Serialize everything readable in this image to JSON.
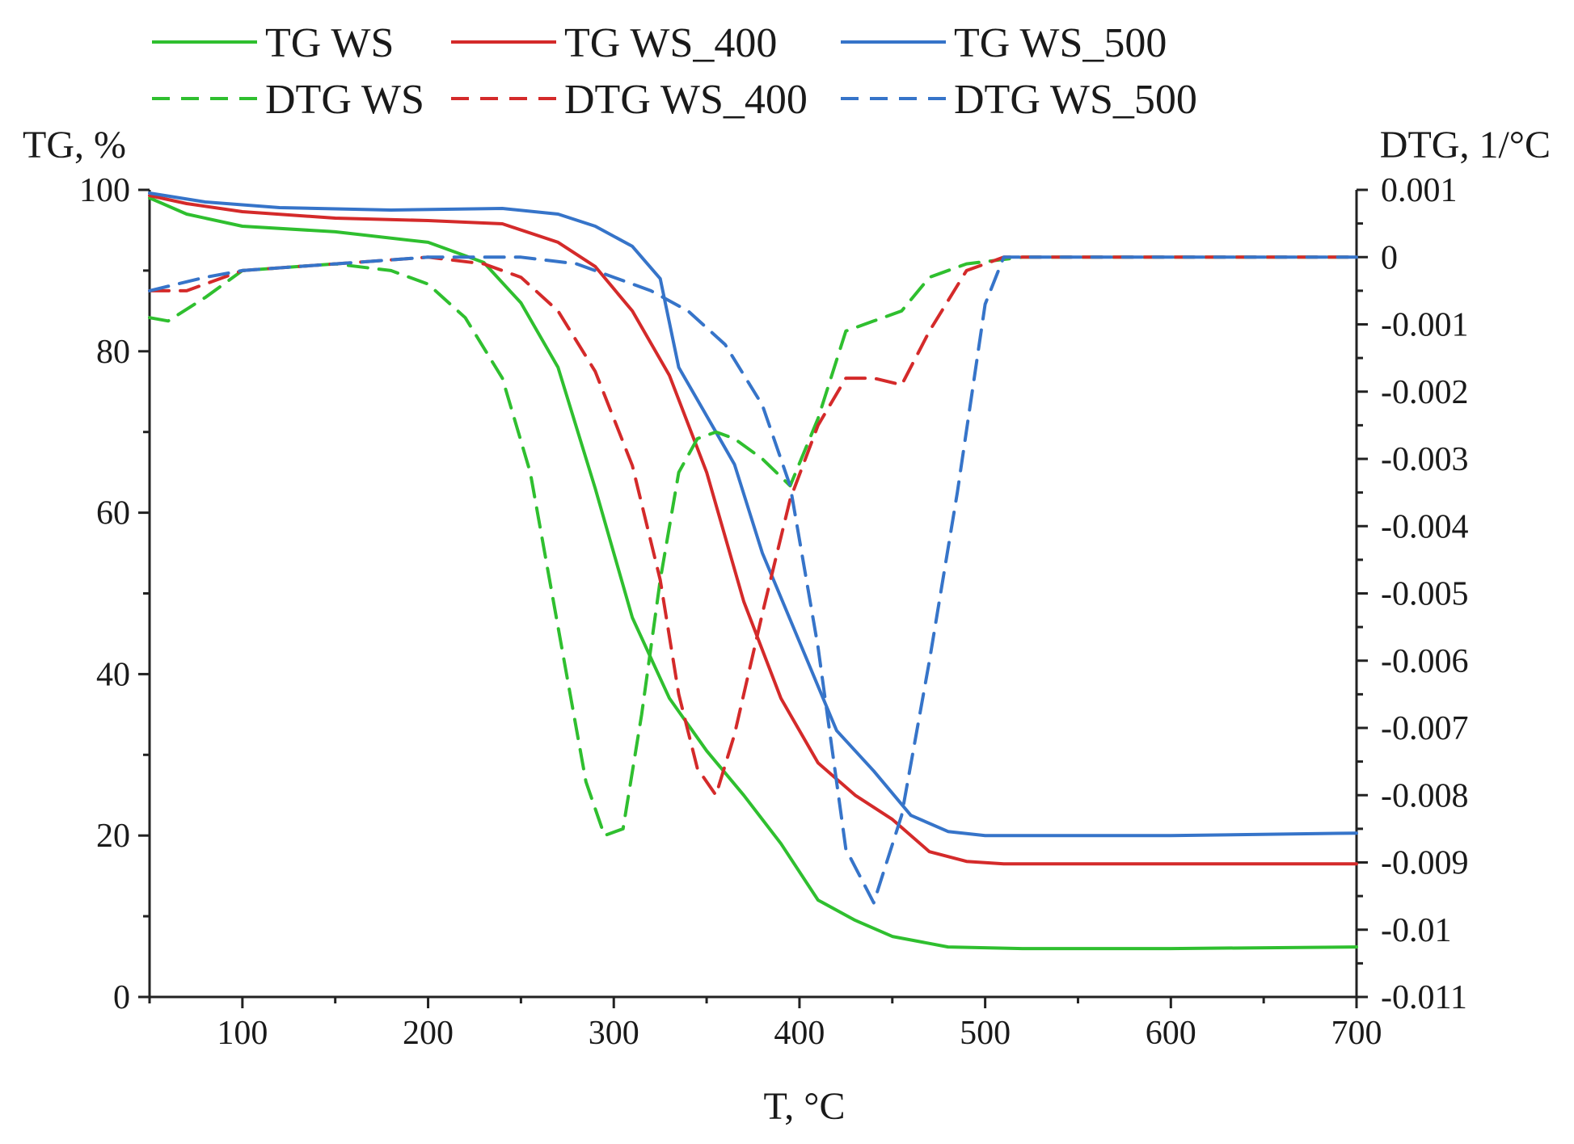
{
  "chart_data": {
    "type": "line",
    "title": "",
    "xlabel": "T, °C",
    "ylabel_left": "TG, %",
    "ylabel_right": "DTG, 1/°C",
    "xlim": [
      50,
      700
    ],
    "ylim_left": [
      0,
      100
    ],
    "ylim_right": [
      -0.011,
      0.001
    ],
    "x_ticks": [
      100,
      200,
      300,
      400,
      500,
      600,
      700
    ],
    "x_tick_labels": [
      "100",
      "200",
      "300",
      "400",
      "500",
      "600",
      "700"
    ],
    "y_left_ticks": [
      0,
      20,
      40,
      60,
      80,
      100
    ],
    "y_left_tick_labels": [
      "0",
      "20",
      "40",
      "60",
      "80",
      "100"
    ],
    "y_right_ticks": [
      0.001,
      0,
      -0.001,
      -0.002,
      -0.003,
      -0.004,
      -0.005,
      -0.006,
      -0.007,
      -0.008,
      -0.009,
      -0.01,
      -0.011
    ],
    "y_right_tick_labels": [
      "0.001",
      "0",
      "-0.001",
      "-0.002",
      "-0.003",
      "-0.004",
      "-0.005",
      "-0.006",
      "-0.007",
      "-0.008",
      "-0.009",
      "-0.01",
      "-0.011"
    ],
    "grid": false,
    "legend_placement": "top",
    "series": [
      {
        "name": "TG WS",
        "axis": "left",
        "style": "solid",
        "color": "#2fbf2f",
        "points": [
          [
            50,
            99
          ],
          [
            70,
            97
          ],
          [
            100,
            95.5
          ],
          [
            150,
            94.8
          ],
          [
            200,
            93.5
          ],
          [
            230,
            91
          ],
          [
            250,
            86
          ],
          [
            270,
            78
          ],
          [
            290,
            63
          ],
          [
            310,
            47
          ],
          [
            330,
            37
          ],
          [
            350,
            30.5
          ],
          [
            370,
            25
          ],
          [
            390,
            19
          ],
          [
            410,
            12
          ],
          [
            430,
            9.5
          ],
          [
            450,
            7.5
          ],
          [
            480,
            6.2
          ],
          [
            520,
            6.0
          ],
          [
            600,
            6.0
          ],
          [
            700,
            6.2
          ]
        ]
      },
      {
        "name": "TG WS_400",
        "axis": "left",
        "style": "solid",
        "color": "#d42a2a",
        "points": [
          [
            50,
            99.3
          ],
          [
            70,
            98.3
          ],
          [
            100,
            97.3
          ],
          [
            150,
            96.5
          ],
          [
            200,
            96.2
          ],
          [
            240,
            95.8
          ],
          [
            270,
            93.5
          ],
          [
            290,
            90.5
          ],
          [
            310,
            85
          ],
          [
            330,
            77
          ],
          [
            350,
            65
          ],
          [
            370,
            49
          ],
          [
            390,
            37
          ],
          [
            410,
            29
          ],
          [
            430,
            25
          ],
          [
            450,
            22
          ],
          [
            470,
            18
          ],
          [
            490,
            16.8
          ],
          [
            510,
            16.5
          ],
          [
            600,
            16.5
          ],
          [
            700,
            16.5
          ]
        ]
      },
      {
        "name": "TG WS_500",
        "axis": "left",
        "style": "solid",
        "color": "#3674c9",
        "points": [
          [
            50,
            99.6
          ],
          [
            80,
            98.5
          ],
          [
            120,
            97.8
          ],
          [
            180,
            97.5
          ],
          [
            240,
            97.7
          ],
          [
            270,
            97
          ],
          [
            290,
            95.5
          ],
          [
            310,
            93
          ],
          [
            325,
            89
          ],
          [
            335,
            78
          ],
          [
            350,
            72
          ],
          [
            365,
            66
          ],
          [
            380,
            55
          ],
          [
            400,
            44
          ],
          [
            420,
            33
          ],
          [
            440,
            28
          ],
          [
            460,
            22.5
          ],
          [
            480,
            20.5
          ],
          [
            500,
            20
          ],
          [
            600,
            20
          ],
          [
            700,
            20.3
          ]
        ]
      },
      {
        "name": "DTG WS",
        "axis": "right",
        "style": "dashed",
        "color": "#2fbf2f",
        "points": [
          [
            50,
            -0.0009
          ],
          [
            60,
            -0.00095
          ],
          [
            80,
            -0.0006
          ],
          [
            100,
            -0.0002
          ],
          [
            150,
            -0.0001
          ],
          [
            180,
            -0.0002
          ],
          [
            200,
            -0.0004
          ],
          [
            220,
            -0.0009
          ],
          [
            240,
            -0.0018
          ],
          [
            255,
            -0.0032
          ],
          [
            270,
            -0.0055
          ],
          [
            285,
            -0.0078
          ],
          [
            295,
            -0.0086
          ],
          [
            305,
            -0.0085
          ],
          [
            315,
            -0.0068
          ],
          [
            325,
            -0.0048
          ],
          [
            335,
            -0.0032
          ],
          [
            345,
            -0.0027
          ],
          [
            355,
            -0.0026
          ],
          [
            365,
            -0.0027
          ],
          [
            380,
            -0.003
          ],
          [
            395,
            -0.0034
          ],
          [
            410,
            -0.0024
          ],
          [
            425,
            -0.0011
          ],
          [
            440,
            -0.00095
          ],
          [
            455,
            -0.0008
          ],
          [
            470,
            -0.0003
          ],
          [
            490,
            -0.0001
          ],
          [
            520,
            0
          ],
          [
            600,
            0
          ],
          [
            700,
            0
          ]
        ]
      },
      {
        "name": "DTG WS_400",
        "axis": "right",
        "style": "dashed",
        "color": "#d42a2a",
        "points": [
          [
            50,
            -0.0005
          ],
          [
            70,
            -0.0005
          ],
          [
            100,
            -0.0002
          ],
          [
            150,
            -0.0001
          ],
          [
            200,
            0
          ],
          [
            230,
            -0.0001
          ],
          [
            250,
            -0.0003
          ],
          [
            270,
            -0.0008
          ],
          [
            290,
            -0.0017
          ],
          [
            310,
            -0.0031
          ],
          [
            325,
            -0.0048
          ],
          [
            335,
            -0.0065
          ],
          [
            345,
            -0.0076
          ],
          [
            355,
            -0.008
          ],
          [
            365,
            -0.0071
          ],
          [
            380,
            -0.0053
          ],
          [
            395,
            -0.0036
          ],
          [
            410,
            -0.0025
          ],
          [
            425,
            -0.0018
          ],
          [
            440,
            -0.0018
          ],
          [
            455,
            -0.0019
          ],
          [
            470,
            -0.0011
          ],
          [
            490,
            -0.0002
          ],
          [
            510,
            0
          ],
          [
            600,
            0
          ],
          [
            700,
            0
          ]
        ]
      },
      {
        "name": "DTG WS_500",
        "axis": "right",
        "style": "dashed",
        "color": "#3674c9",
        "points": [
          [
            50,
            -0.0005
          ],
          [
            80,
            -0.0003
          ],
          [
            100,
            -0.0002
          ],
          [
            150,
            -0.0001
          ],
          [
            200,
            0
          ],
          [
            250,
            0
          ],
          [
            280,
            -0.0001
          ],
          [
            300,
            -0.0003
          ],
          [
            320,
            -0.0005
          ],
          [
            340,
            -0.0008
          ],
          [
            360,
            -0.0013
          ],
          [
            380,
            -0.0022
          ],
          [
            395,
            -0.0034
          ],
          [
            410,
            -0.0058
          ],
          [
            425,
            -0.0088
          ],
          [
            440,
            -0.0096
          ],
          [
            455,
            -0.0083
          ],
          [
            470,
            -0.006
          ],
          [
            485,
            -0.0035
          ],
          [
            500,
            -0.0007
          ],
          [
            510,
            0
          ],
          [
            600,
            0
          ],
          [
            700,
            0
          ]
        ]
      }
    ]
  }
}
